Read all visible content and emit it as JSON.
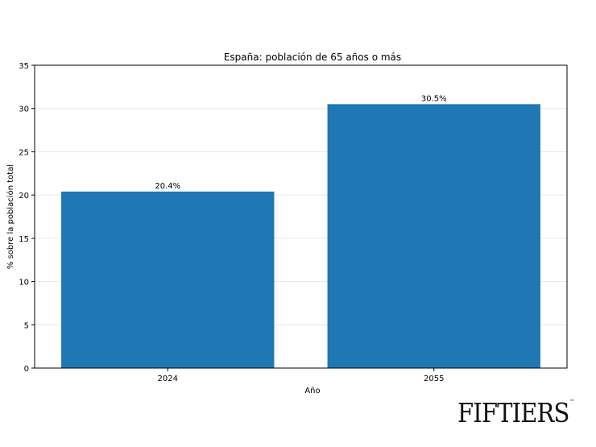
{
  "chart_data": {
    "type": "bar",
    "title": "España: población de 65 años o más",
    "xlabel": "Año",
    "ylabel": "% sobre la población total",
    "categories": [
      "2024",
      "2055"
    ],
    "values": [
      20.4,
      30.5
    ],
    "value_labels": [
      "20.4%",
      "30.5%"
    ],
    "ylim": [
      0,
      35
    ],
    "yticks": [
      0,
      5,
      10,
      15,
      20,
      25,
      30,
      35
    ],
    "grid": "horizontal",
    "bar_color": "#1f77b4"
  },
  "branding": {
    "logo_text": "FIFTIERS",
    "logo_mark": "™"
  }
}
